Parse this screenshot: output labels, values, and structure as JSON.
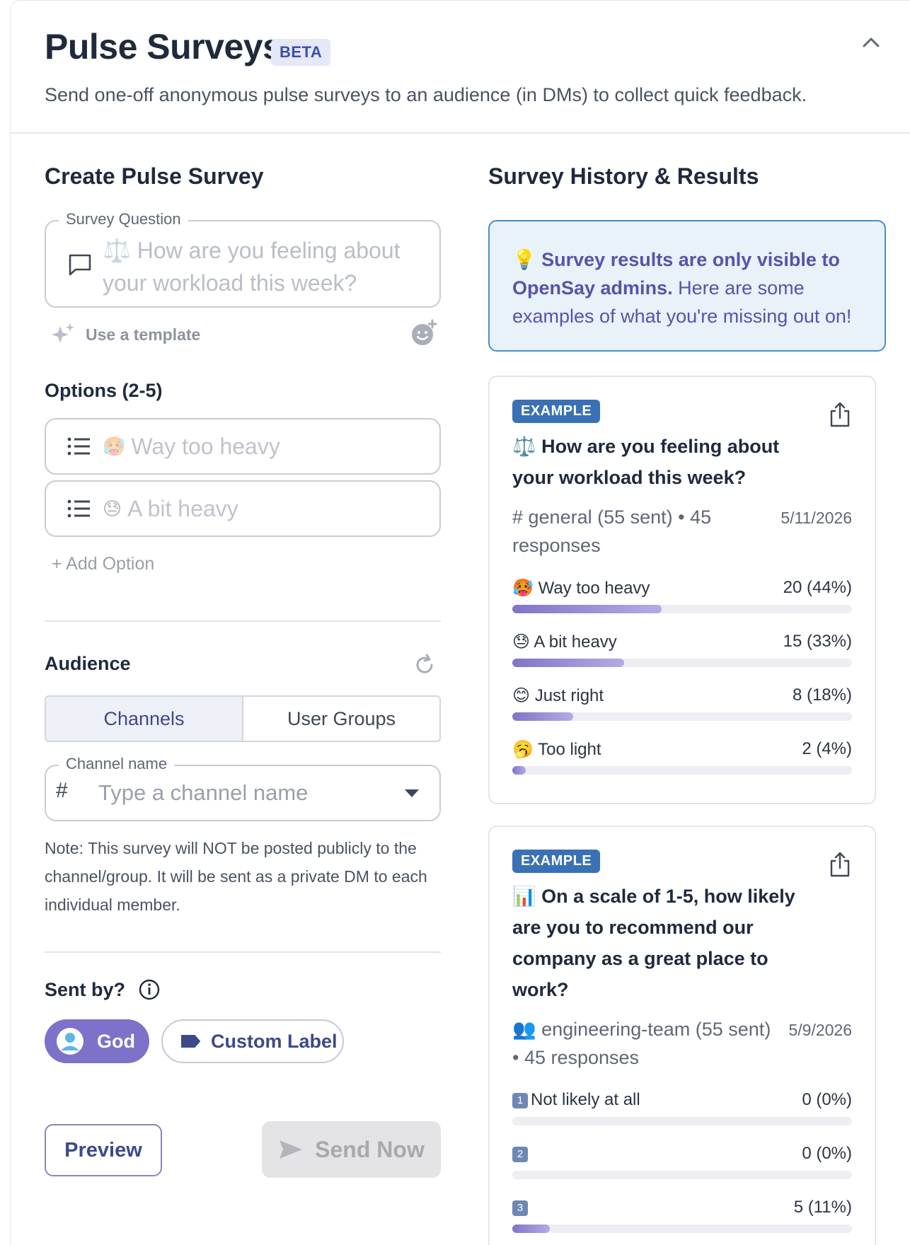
{
  "header": {
    "title": "Pulse Surveys",
    "badge": "BETA",
    "subtitle": "Send one-off anonymous pulse surveys to an audience (in DMs) to collect quick feedback."
  },
  "create": {
    "title": "Create Pulse Survey",
    "question_legend": "Survey Question",
    "question_placeholder_line1": "How are you feeling about",
    "question_placeholder_line2": "your workload this week?",
    "use_template": "Use a template",
    "options_title": "Options (2-5)",
    "options": [
      {
        "emoji": "🥵",
        "placeholder": "Way too heavy"
      },
      {
        "emoji": "😓",
        "placeholder": "A bit heavy"
      }
    ],
    "add_option": "+ Add Option",
    "audience_title": "Audience",
    "tabs": [
      {
        "label": "Channels",
        "active": true
      },
      {
        "label": "User Groups",
        "active": false
      }
    ],
    "channel_legend": "Channel name",
    "channel_hash": "#",
    "channel_placeholder": "Type a channel name",
    "note": "Note: This survey will NOT be posted publicly to the channel/group. It will be sent as a private DM to each individual member.",
    "sent_by_title": "Sent by?",
    "sent_by_options": [
      {
        "label": "God",
        "selected": true
      },
      {
        "label": "Custom Label",
        "selected": false
      }
    ],
    "preview_label": "Preview",
    "send_label": "Send Now"
  },
  "history": {
    "title": "Survey History & Results",
    "info_bold": "Survey results are only visible to OpenSay admins.",
    "info_rest": " Here are some examples of what you're missing out on!",
    "examples": [
      {
        "badge": "EXAMPLE",
        "question_emoji": "⚖️",
        "question": "How are you feeling about your workload this week?",
        "meta": "# general (55 sent) • 45 responses",
        "date": "5/11/2026",
        "results": [
          {
            "emoji": "🥵",
            "label": "Way too heavy",
            "value": "20 (44%)",
            "fraction": 0.44
          },
          {
            "emoji": "😓",
            "label": "A bit heavy",
            "value": "15 (33%)",
            "fraction": 0.33
          },
          {
            "emoji": "😊",
            "label": "Just right",
            "value": "8 (18%)",
            "fraction": 0.18
          },
          {
            "emoji": "🥱",
            "label": "Too light",
            "value": "2 (4%)",
            "fraction": 0.04
          }
        ]
      },
      {
        "badge": "EXAMPLE",
        "question_emoji": "📊",
        "question": "On a scale of 1-5, how likely are you to recommend our company as a great place to work?",
        "meta": "👥 engineering-team (55 sent) • 45 responses",
        "date": "5/9/2026",
        "results": [
          {
            "key": "1",
            "label": "Not likely at all",
            "value": "0 (0%)",
            "fraction": 0
          },
          {
            "key": "2",
            "label": "",
            "value": "0 (0%)",
            "fraction": 0
          },
          {
            "key": "3",
            "label": "",
            "value": "5 (11%)",
            "fraction": 0.11
          }
        ]
      }
    ]
  },
  "colors": {
    "accent": "#7c72c9",
    "info_border": "#4a8ec0",
    "badge_blue": "#3a71b5"
  }
}
